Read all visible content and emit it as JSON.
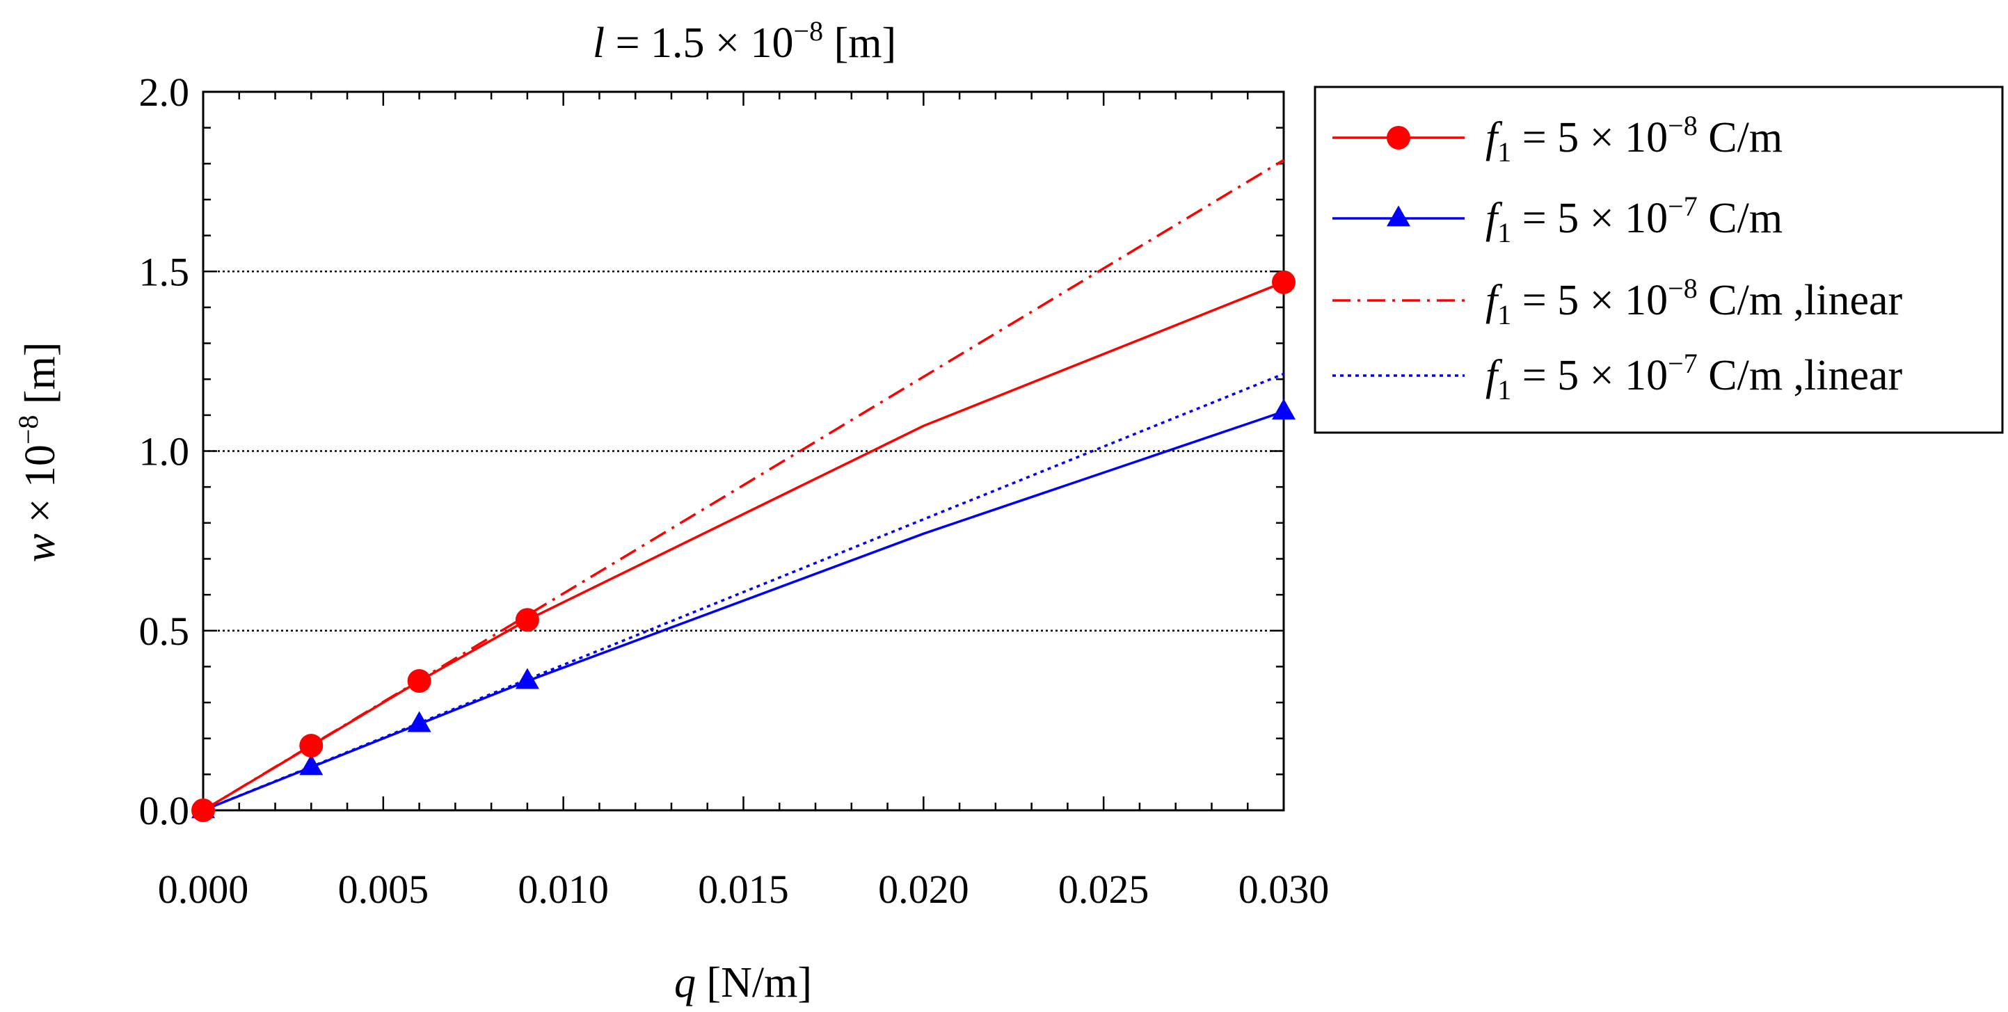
{
  "chart_data": {
    "type": "line",
    "title": "l = 1.5 × 10⁻⁸ [m]",
    "title_parts": {
      "var": "l",
      "rest": " = 1.5 × 10",
      "exp": "−8",
      "unit": " [m]"
    },
    "xlabel": "q [N/m]",
    "xlabel_parts": {
      "var": "q",
      "rest": " [N/m]"
    },
    "ylabel": "w × 10⁻⁸ [m]",
    "ylabel_parts": {
      "var": "w",
      "rest": " × 10",
      "exp": "−8",
      "unit": " [m]"
    },
    "xlim": [
      0,
      0.03
    ],
    "ylim": [
      0,
      2.0
    ],
    "x_ticks": [
      "0.000",
      "0.005",
      "0.010",
      "0.015",
      "0.020",
      "0.025",
      "0.030"
    ],
    "y_ticks": [
      "0.0",
      "0.5",
      "1.0",
      "1.5",
      "2.0"
    ],
    "grid": "horizontal dotted",
    "legend_position": "right, outside top",
    "series": [
      {
        "name": "f1 = 5 × 10⁻⁸ C/m",
        "label_parts": {
          "var": "f",
          "sub": "1",
          "rest": " = 5 × 10",
          "exp": "−8",
          "unit": " C/m",
          "suffix": ""
        },
        "color": "#ff0000",
        "style": "solid",
        "marker": "circle",
        "x": [
          0,
          0.003,
          0.006,
          0.009,
          0.02,
          0.03
        ],
        "y": [
          0.0,
          0.18,
          0.36,
          0.53,
          1.07,
          1.47
        ],
        "marker_idx": [
          0,
          1,
          2,
          3,
          5
        ]
      },
      {
        "name": "f1 = 5 × 10⁻⁷ C/m",
        "label_parts": {
          "var": "f",
          "sub": "1",
          "rest": " = 5 × 10",
          "exp": "−7",
          "unit": " C/m",
          "suffix": ""
        },
        "color": "#0000ff",
        "style": "solid",
        "marker": "triangle",
        "x": [
          0,
          0.003,
          0.006,
          0.009,
          0.02,
          0.03
        ],
        "y": [
          0.0,
          0.12,
          0.24,
          0.36,
          0.77,
          1.11
        ],
        "marker_idx": [
          0,
          1,
          2,
          3,
          5
        ]
      },
      {
        "name": "f1 = 5 × 10⁻⁸ C/m ,linear",
        "label_parts": {
          "var": "f",
          "sub": "1",
          "rest": " = 5 × 10",
          "exp": "−8",
          "unit": " C/m",
          "suffix": " ,linear"
        },
        "color": "#ff0000",
        "style": "dashdot",
        "marker": "none",
        "x": [
          0,
          0.03
        ],
        "y": [
          0.0,
          1.81
        ],
        "marker_idx": []
      },
      {
        "name": "f1 = 5 × 10⁻⁷ C/m ,linear",
        "label_parts": {
          "var": "f",
          "sub": "1",
          "rest": " = 5 × 10",
          "exp": "−7",
          "unit": " C/m",
          "suffix": " ,linear"
        },
        "color": "#0000ff",
        "style": "dotted",
        "marker": "none",
        "x": [
          0,
          0.03
        ],
        "y": [
          0.0,
          1.215
        ],
        "marker_idx": []
      }
    ]
  }
}
